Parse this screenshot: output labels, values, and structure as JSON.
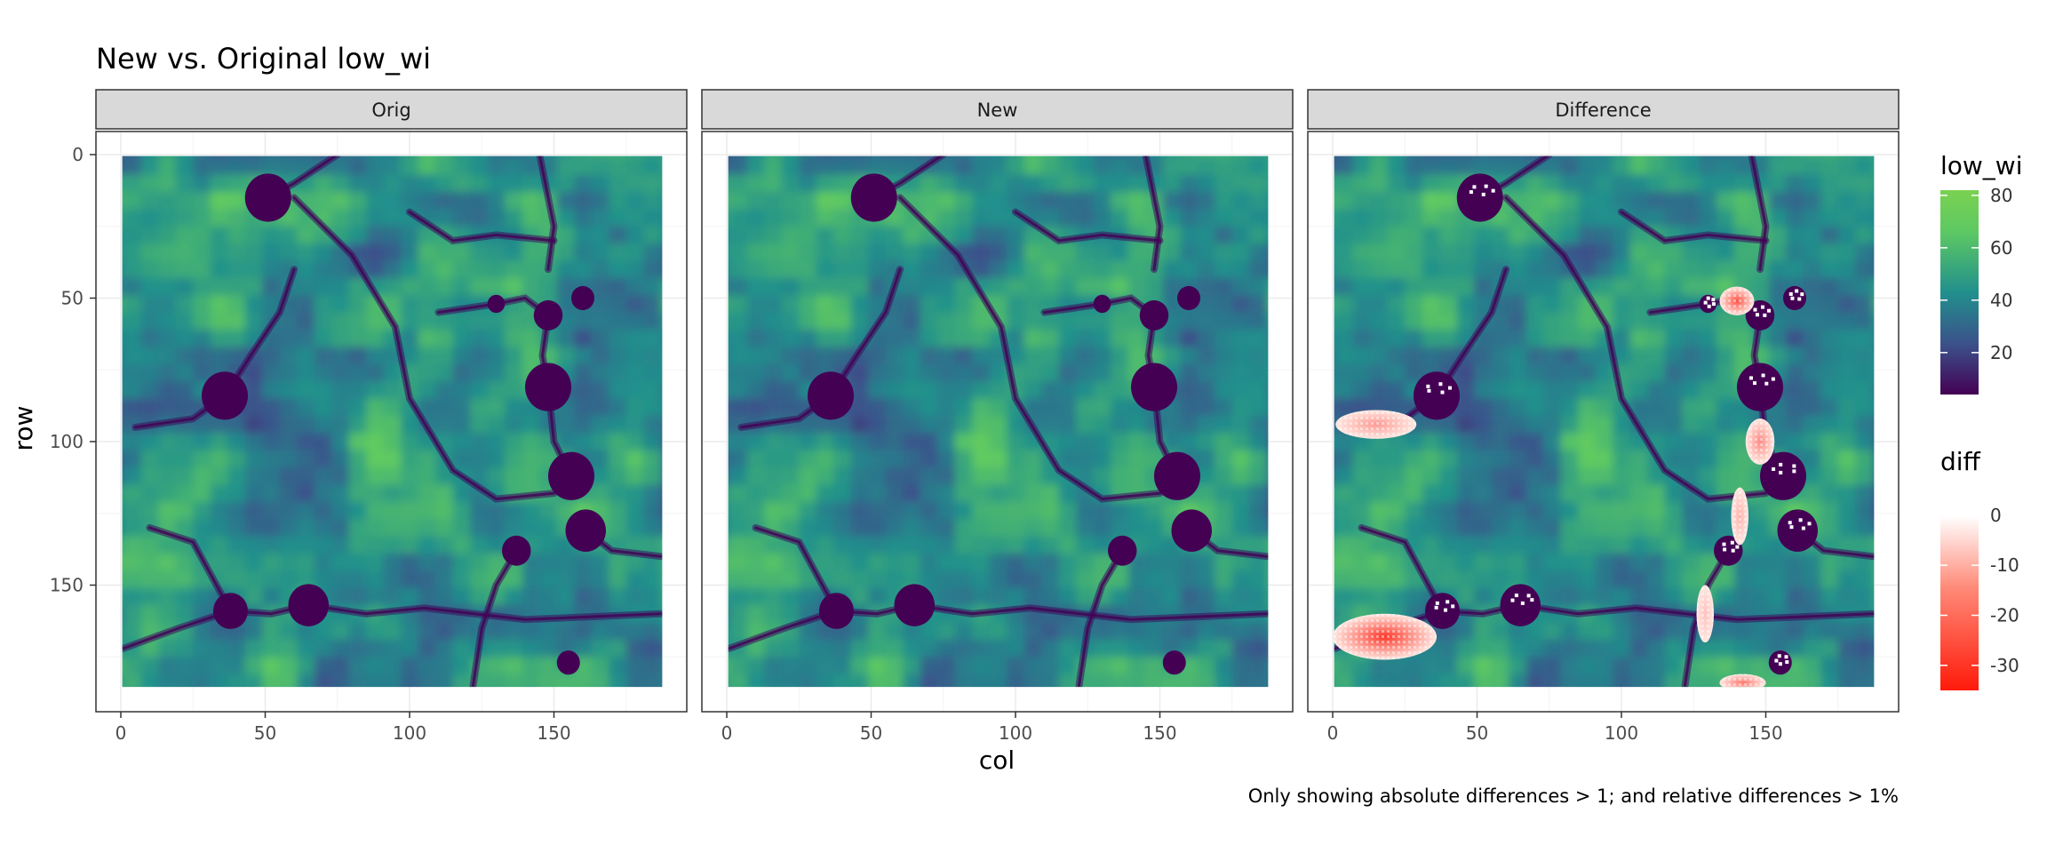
{
  "chart_data": {
    "type": "heatmap",
    "title": "New vs. Original low_wi",
    "caption": "Only showing absolute differences > 1; and relative differences > 1%",
    "xlabel": "col",
    "ylabel": "row",
    "facets": [
      "Orig",
      "New",
      "Difference"
    ],
    "x_range": [
      1,
      187
    ],
    "y_range": [
      1,
      185
    ],
    "y_reversed": true,
    "x_ticks": [
      0,
      50,
      100,
      150
    ],
    "y_ticks": [
      0,
      50,
      100,
      150
    ],
    "grid": true,
    "legends": [
      {
        "title": "low_wi",
        "range": [
          4,
          82
        ],
        "ticks": [
          20,
          40,
          60,
          80
        ],
        "palette": [
          "#440154",
          "#3b528b",
          "#21908c",
          "#5ec962",
          "#7ad151"
        ]
      },
      {
        "title": "diff",
        "range": [
          -35,
          6
        ],
        "ticks": [
          0,
          -10,
          -20,
          -30
        ],
        "palette": [
          "#ff1a0a",
          "#ff8a78",
          "#ffffff"
        ]
      }
    ],
    "depressions": [
      {
        "col": 51,
        "row": 15,
        "r": 8
      },
      {
        "col": 36,
        "row": 84,
        "r": 8
      },
      {
        "col": 148,
        "row": 56,
        "r": 5
      },
      {
        "col": 160,
        "row": 50,
        "r": 4
      },
      {
        "col": 130,
        "row": 52,
        "r": 3
      },
      {
        "col": 148,
        "row": 81,
        "r": 8
      },
      {
        "col": 156,
        "row": 112,
        "r": 8
      },
      {
        "col": 161,
        "row": 131,
        "r": 7
      },
      {
        "col": 137,
        "row": 138,
        "r": 5
      },
      {
        "col": 38,
        "row": 159,
        "r": 6
      },
      {
        "col": 65,
        "row": 157,
        "r": 7
      },
      {
        "col": 155,
        "row": 177,
        "r": 4
      }
    ],
    "difference_patches": [
      {
        "col": 15,
        "row": 94,
        "rx": 14,
        "ry": 5,
        "min_diff": -12
      },
      {
        "col": 18,
        "row": 168,
        "rx": 18,
        "ry": 8,
        "min_diff": -30
      },
      {
        "col": 140,
        "row": 51,
        "rx": 6,
        "ry": 5,
        "min_diff": -25
      },
      {
        "col": 148,
        "row": 100,
        "rx": 5,
        "ry": 8,
        "min_diff": -15
      },
      {
        "col": 141,
        "row": 126,
        "rx": 3,
        "ry": 10,
        "min_diff": -8
      },
      {
        "col": 129,
        "row": 160,
        "rx": 3,
        "ry": 10,
        "min_diff": -5
      },
      {
        "col": 142,
        "row": 184,
        "rx": 8,
        "ry": 3,
        "min_diff": -18
      }
    ]
  }
}
